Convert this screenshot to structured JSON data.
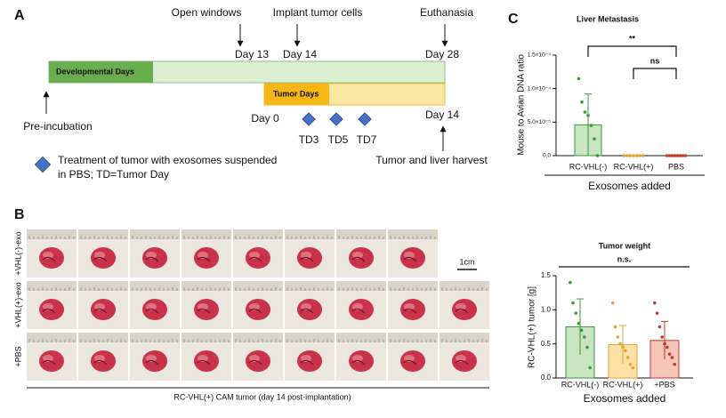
{
  "panel_a": {
    "label": "A",
    "open_windows": "Open windows",
    "implant": "Implant tumor cells",
    "euthanasia": "Euthanasia",
    "day13": "Day 13",
    "day14_top": "Day 14",
    "day28": "Day 28",
    "developmental": "Developmental Days",
    "tumor": "Tumor Days",
    "pre_incubation": "Pre-incubation",
    "day0": "Day 0",
    "day14_bottom": "Day 14",
    "td": [
      "TD3",
      "TD5",
      "TD7"
    ],
    "harvest": "Tumor and liver harvest",
    "legend": [
      "Treatment of tumor with exosomes suspended",
      "in PBS; TD=Tumor Day"
    ]
  },
  "panel_b": {
    "label": "B",
    "rows": [
      "+VHL(-)-exo",
      "+VHL(+)-exo",
      "+PBS"
    ],
    "scale": "1cm",
    "caption": "RC-VHL(+) CAM tumor (day 14 post-implantation)"
  },
  "panel_c": {
    "label": "C"
  },
  "chart_data": [
    {
      "type": "bar",
      "title": "Liver Metastasis",
      "ylabel": "Mouse to Avian DNA ratio",
      "xlabel": "Exosomes added",
      "categories": [
        "RC-VHL(-)",
        "RC-VHL(+)",
        "PBS"
      ],
      "values": [
        4.6e-05,
        0,
        0
      ],
      "errors": [
        4.6e-05,
        0,
        0
      ],
      "points": [
        [
          0.000115,
          8e-05,
          6.5e-05,
          6e-05,
          4.5e-05,
          2.5e-05,
          0
        ],
        [
          0,
          0,
          0,
          0,
          0,
          0,
          0
        ],
        [
          0,
          0,
          0,
          0,
          0,
          0,
          0,
          0
        ]
      ],
      "colors": [
        "#c8e4c0",
        "#fde2a8",
        "#f5c6b8"
      ],
      "edge_colors": [
        "#3a9a3a",
        "#e8a030",
        "#c0392b"
      ],
      "ylim": [
        0,
        0.00015
      ],
      "yticks": [
        {
          "value": 0,
          "label": "0.0"
        },
        {
          "value": 5e-05,
          "label": "5.0×10⁻⁵"
        },
        {
          "value": 0.0001,
          "label": "1.0×10⁻⁴"
        },
        {
          "value": 0.00015,
          "label": "1.5×10⁻⁴"
        }
      ],
      "annotations": [
        "**",
        "ns"
      ]
    },
    {
      "type": "bar",
      "title": "Tumor weight",
      "ylabel": "RC-VHL(+) tumor [g]",
      "xlabel": "Exosomes added",
      "categories": [
        "RC-VHL(-)",
        "RC-VHL(+)",
        "+PBS"
      ],
      "values": [
        0.75,
        0.49,
        0.55
      ],
      "errors": [
        0.41,
        0.28,
        0.28
      ],
      "points": [
        [
          1.4,
          1.1,
          0.95,
          0.8,
          0.7,
          0.6,
          0.45,
          0.15
        ],
        [
          1.1,
          0.75,
          0.6,
          0.5,
          0.45,
          0.4,
          0.3,
          0.2,
          0.15
        ],
        [
          1.1,
          0.95,
          0.75,
          0.6,
          0.5,
          0.45,
          0.35,
          0.3,
          0.2
        ]
      ],
      "colors": [
        "#c8e4c0",
        "#fde2a8",
        "#f5c6b8"
      ],
      "edge_colors": [
        "#3a9a3a",
        "#e8a030",
        "#c0392b"
      ],
      "ylim": [
        0,
        1.5
      ],
      "yticks": [
        {
          "value": 0,
          "label": "0.0"
        },
        {
          "value": 0.5,
          "label": "0.5"
        },
        {
          "value": 1,
          "label": "1.0"
        },
        {
          "value": 1.5,
          "label": "1.5"
        }
      ],
      "annotations": [
        "n.s."
      ]
    }
  ]
}
